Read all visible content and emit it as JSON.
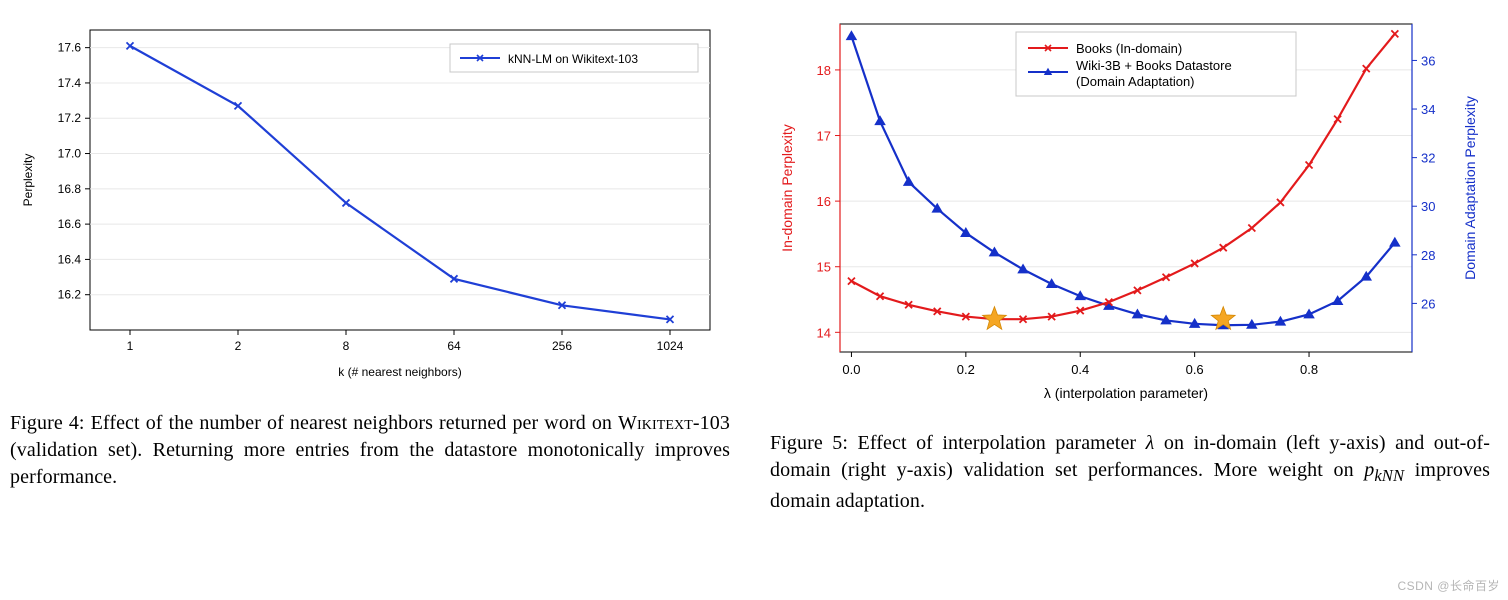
{
  "watermark": "CSDN @长命百岁",
  "fig4": {
    "type": "line",
    "legend": "kNN-LM on Wikitext-103",
    "xlabel": "k (# nearest neighbors)",
    "ylabel": "Perplexity",
    "x_categories": [
      "1",
      "2",
      "8",
      "64",
      "256",
      "1024"
    ],
    "y": [
      17.61,
      17.27,
      16.72,
      16.29,
      16.14,
      16.06
    ],
    "ylim": [
      16.0,
      17.7
    ],
    "ytick_step": 0.2,
    "yticks": [
      "16.2",
      "16.4",
      "16.6",
      "16.8",
      "17.0",
      "17.2",
      "17.4",
      "17.6"
    ],
    "line_color": "#1f3fd6",
    "marker": "x",
    "marker_size": 7,
    "line_width": 2.2,
    "background_color": "#ffffff",
    "grid_color": "#e8e8e8",
    "axis_color": "#000000",
    "tick_fontsize": 12,
    "label_fontsize": 12,
    "legend_fontsize": 12,
    "legend_border_color": "#c8c8c8",
    "caption_label": "Figure 4:",
    "caption_text_pre": "Effect of the number of nearest neighbors returned per word on ",
    "caption_wikitext": "Wikitext",
    "caption_text_post": "-103 (validation set).  Returning more entries from the datastore monotonically improves performance."
  },
  "fig5": {
    "type": "line-dual-axis",
    "xlabel": "λ (interpolation parameter)",
    "ylabel_left": "In-domain Perplexity",
    "ylabel_right": "Domain Adaptation Perplexity",
    "legend_series1": "Books (In-domain)",
    "legend_series2_line1": "Wiki-3B + Books Datastore",
    "legend_series2_line2": "(Domain Adaptation)",
    "x": [
      0.0,
      0.05,
      0.1,
      0.15,
      0.2,
      0.25,
      0.3,
      0.35,
      0.4,
      0.45,
      0.5,
      0.55,
      0.6,
      0.65,
      0.7,
      0.75,
      0.8,
      0.85,
      0.9,
      0.95
    ],
    "series1_y_left": [
      14.78,
      14.55,
      14.42,
      14.32,
      14.24,
      14.2,
      14.2,
      14.24,
      14.33,
      14.46,
      14.64,
      14.84,
      15.05,
      15.29,
      15.59,
      15.98,
      16.55,
      17.25,
      18.02,
      18.55
    ],
    "series2_y_right": [
      37.0,
      33.5,
      31.0,
      29.9,
      28.9,
      28.1,
      27.4,
      26.8,
      26.3,
      25.9,
      25.55,
      25.3,
      25.16,
      25.1,
      25.12,
      25.25,
      25.55,
      26.1,
      27.1,
      28.5
    ],
    "star_x": [
      0.25,
      0.65
    ],
    "star_y_left": [
      14.2,
      14.2
    ],
    "ylim_left": [
      13.7,
      18.7
    ],
    "ylim_right": [
      24.0,
      37.5
    ],
    "xlim": [
      -0.02,
      0.98
    ],
    "xtick_step": 0.2,
    "xticks": [
      "0.0",
      "0.2",
      "0.4",
      "0.6",
      "0.8"
    ],
    "ytick_left_step": 1,
    "yticks_left": [
      "14",
      "15",
      "16",
      "17",
      "18"
    ],
    "ytick_right_step": 2,
    "yticks_right": [
      "26",
      "28",
      "30",
      "32",
      "34",
      "36"
    ],
    "series1_color": "#e31a1c",
    "series2_color": "#1530c9",
    "series1_marker": "x",
    "series2_marker": "triangle",
    "marker_size": 7,
    "line_width": 2.2,
    "star_color": "#f5a623",
    "star_stroke": "#d48806",
    "star_size": 20,
    "background_color": "#ffffff",
    "grid_color": "#e8e8e8",
    "axis_color": "#000000",
    "tick_fontsize": 13,
    "label_fontsize": 14,
    "legend_fontsize": 13,
    "legend_border_color": "#c8c8c8",
    "caption_label": "Figure 5:",
    "caption_text_1": "Effect of interpolation parameter ",
    "caption_lambda": "λ",
    "caption_text_2": " on in-domain (left y-axis) and out-of-domain (right y-axis) validation set performances. More weight on ",
    "caption_pknn": "p",
    "caption_pknn_sub": "kNN",
    "caption_text_3": " improves domain adaptation."
  }
}
